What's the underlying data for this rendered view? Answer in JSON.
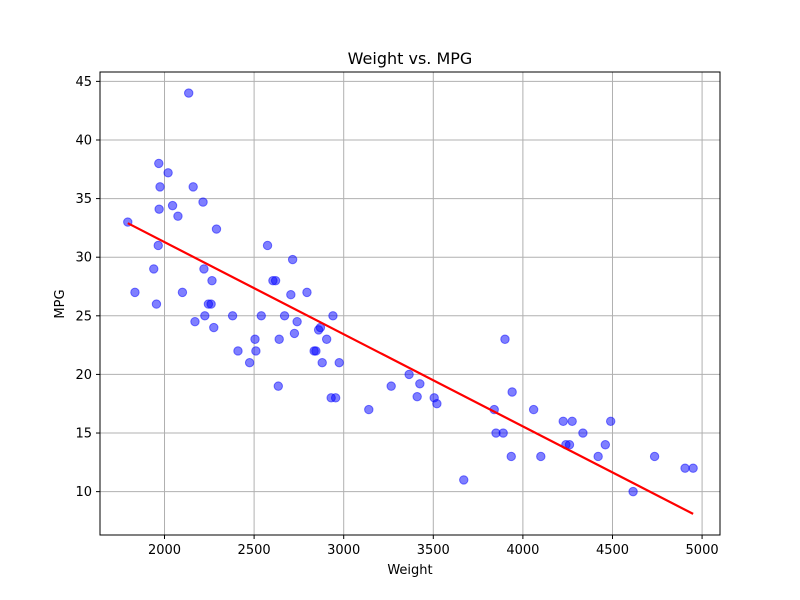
{
  "chart_data": {
    "type": "scatter",
    "title": "Weight vs. MPG",
    "xlabel": "Weight",
    "ylabel": "MPG",
    "xlim": [
      1640,
      5100
    ],
    "ylim": [
      6.3,
      45.8
    ],
    "xticks": [
      2000,
      2500,
      3000,
      3500,
      4000,
      4500,
      5000
    ],
    "yticks": [
      10,
      15,
      20,
      25,
      30,
      35,
      40,
      45
    ],
    "grid": true,
    "colors": {
      "points": "#0000ff",
      "trendline": "#ff0000",
      "grid": "#b0b0b0"
    },
    "series": [
      {
        "type": "scatter",
        "points": [
          [
            1795,
            33
          ],
          [
            1835,
            27
          ],
          [
            1940,
            29
          ],
          [
            1955,
            26
          ],
          [
            1965,
            31
          ],
          [
            1968,
            38
          ],
          [
            1970,
            34.1
          ],
          [
            1975,
            36
          ],
          [
            2020,
            37.2
          ],
          [
            2045,
            34.4
          ],
          [
            2075,
            33.5
          ],
          [
            2100,
            27
          ],
          [
            2135,
            44
          ],
          [
            2160,
            36
          ],
          [
            2170,
            24.5
          ],
          [
            2215,
            34.7
          ],
          [
            2220,
            29
          ],
          [
            2225,
            25
          ],
          [
            2245,
            26
          ],
          [
            2260,
            26
          ],
          [
            2265,
            28
          ],
          [
            2275,
            24
          ],
          [
            2290,
            32.4
          ],
          [
            2380,
            25
          ],
          [
            2410,
            22
          ],
          [
            2475,
            21
          ],
          [
            2505,
            23
          ],
          [
            2510,
            22
          ],
          [
            2540,
            25
          ],
          [
            2575,
            31
          ],
          [
            2605,
            28
          ],
          [
            2620,
            28
          ],
          [
            2635,
            19
          ],
          [
            2640,
            23
          ],
          [
            2670,
            25
          ],
          [
            2705,
            26.8
          ],
          [
            2715,
            29.8
          ],
          [
            2725,
            23.5
          ],
          [
            2740,
            24.5
          ],
          [
            2795,
            27
          ],
          [
            2835,
            22
          ],
          [
            2845,
            22
          ],
          [
            2860,
            23.8
          ],
          [
            2870,
            24
          ],
          [
            2880,
            21
          ],
          [
            2905,
            23
          ],
          [
            2930,
            18
          ],
          [
            2940,
            25
          ],
          [
            2955,
            18
          ],
          [
            2975,
            21
          ],
          [
            3140,
            17
          ],
          [
            3265,
            19
          ],
          [
            3365,
            20
          ],
          [
            3410,
            18.1
          ],
          [
            3425,
            19.2
          ],
          [
            3505,
            18
          ],
          [
            3520,
            17.5
          ],
          [
            3670,
            11
          ],
          [
            3840,
            17
          ],
          [
            3850,
            15
          ],
          [
            3890,
            15
          ],
          [
            3900,
            23
          ],
          [
            3935,
            13
          ],
          [
            3940,
            18.5
          ],
          [
            4060,
            17
          ],
          [
            4100,
            13
          ],
          [
            4225,
            16
          ],
          [
            4240,
            14
          ],
          [
            4260,
            14
          ],
          [
            4275,
            16
          ],
          [
            4335,
            15
          ],
          [
            4420,
            13
          ],
          [
            4460,
            14
          ],
          [
            4490,
            16
          ],
          [
            4615,
            10
          ],
          [
            4735,
            13
          ],
          [
            4905,
            12
          ],
          [
            4950,
            12
          ]
        ]
      },
      {
        "type": "line",
        "points": [
          [
            1795,
            32.9
          ],
          [
            4950,
            8.1
          ]
        ]
      }
    ]
  }
}
